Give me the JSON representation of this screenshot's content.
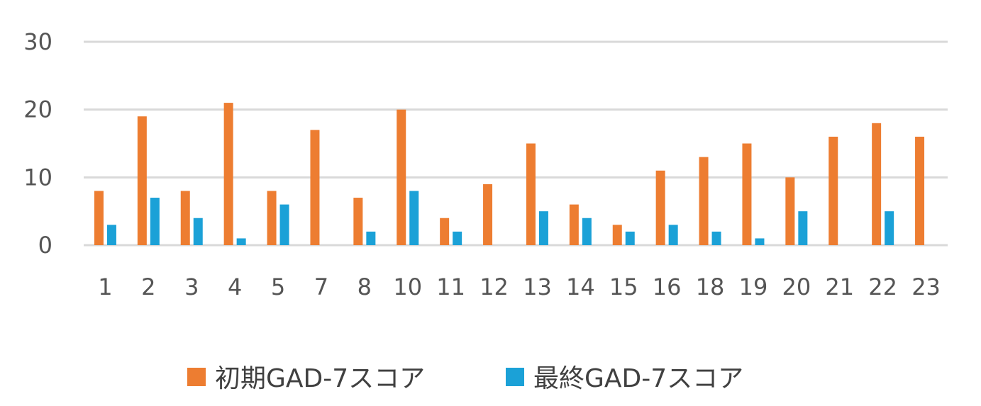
{
  "chart_data": {
    "type": "bar",
    "categories": [
      "1",
      "2",
      "3",
      "4",
      "5",
      "7",
      "8",
      "10",
      "11",
      "12",
      "13",
      "14",
      "15",
      "16",
      "18",
      "19",
      "20",
      "21",
      "22",
      "23"
    ],
    "series": [
      {
        "name": "初期GAD-7スコア",
        "color": "#ED7D31",
        "values": [
          8,
          19,
          8,
          21,
          8,
          17,
          7,
          20,
          4,
          9,
          15,
          6,
          3,
          11,
          13,
          15,
          10,
          16,
          18,
          16
        ]
      },
      {
        "name": "最終GAD-7スコア",
        "color": "#1BA1D7",
        "values": [
          3,
          7,
          4,
          1,
          6,
          0,
          2,
          8,
          2,
          0,
          5,
          4,
          2,
          3,
          2,
          1,
          5,
          0,
          5,
          0
        ]
      }
    ],
    "yticks": [
      "0",
      "10",
      "20",
      "30"
    ],
    "ylim": [
      0,
      30
    ],
    "grid": true,
    "gridColor": "#d9d9d9",
    "legend_position": "bottom"
  }
}
